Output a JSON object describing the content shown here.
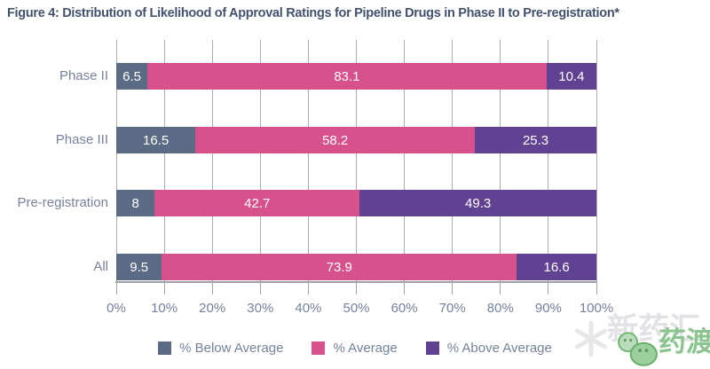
{
  "chart_data": {
    "type": "bar",
    "orientation": "horizontal",
    "stacked": true,
    "title": "Figure 4: Distribution of Likelihood of Approval Ratings for Pipeline Drugs in Phase II to Pre-registration*",
    "categories": [
      "Phase II",
      "Phase III",
      "Pre-registration",
      "All"
    ],
    "series": [
      {
        "name": "% Below Average",
        "color": "#5b6b85",
        "values": [
          6.5,
          16.5,
          8,
          9.5
        ]
      },
      {
        "name": "% Average",
        "color": "#d7518c",
        "values": [
          83.1,
          58.2,
          42.7,
          73.9
        ]
      },
      {
        "name": "% Above Average",
        "color": "#614292",
        "values": [
          10.4,
          25.3,
          49.3,
          16.6
        ]
      }
    ],
    "x_axis": {
      "min": 0,
      "max": 100,
      "ticks": [
        "0%",
        "10%",
        "20%",
        "30%",
        "40%",
        "50%",
        "60%",
        "70%",
        "80%",
        "90%",
        "100%"
      ]
    },
    "grid": true,
    "legend_position": "bottom",
    "value_labels": "inside-white"
  },
  "watermark": {
    "background_text": "新药汇",
    "brand_text": "药渡",
    "brand_color": "#8cc48f"
  },
  "colors": {
    "title_text": "#42526d",
    "axis_text": "#76819b",
    "gridline": "#a9acb2"
  }
}
